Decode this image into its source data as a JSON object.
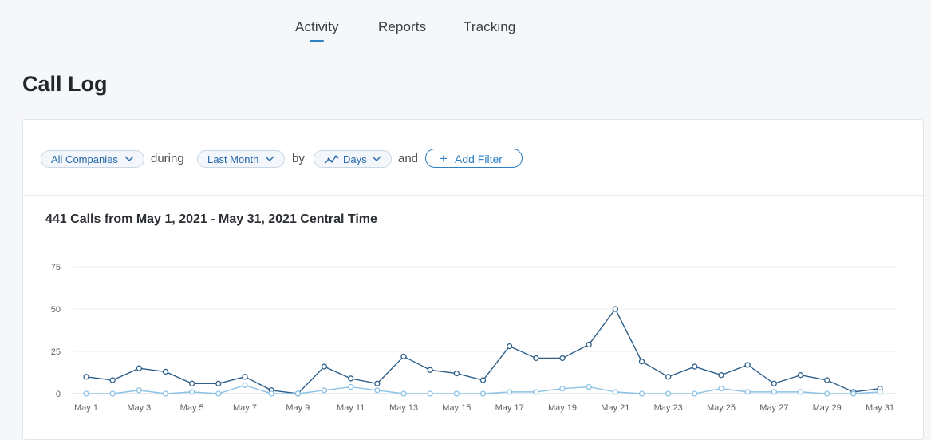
{
  "nav": {
    "tabs": [
      {
        "label": "Activity",
        "active": true
      },
      {
        "label": "Reports",
        "active": false
      },
      {
        "label": "Tracking",
        "active": false
      }
    ]
  },
  "page": {
    "title": "Call Log"
  },
  "filters": {
    "company": "All Companies",
    "during_label": "during",
    "period": "Last Month",
    "by_label": "by",
    "granularity": "Days",
    "and_label": "and",
    "add_filter": "Add Filter"
  },
  "summary": "441 Calls from May 1, 2021 - May 31, 2021 Central Time",
  "colors": {
    "accent": "#2f7fc1",
    "series_dark": "#2e5f8a",
    "series_light": "#8dc3e6"
  },
  "chart_data": {
    "type": "line",
    "x": [
      "May 1",
      "May 2",
      "May 3",
      "May 4",
      "May 5",
      "May 6",
      "May 7",
      "May 8",
      "May 9",
      "May 10",
      "May 11",
      "May 12",
      "May 13",
      "May 14",
      "May 15",
      "May 16",
      "May 17",
      "May 18",
      "May 19",
      "May 20",
      "May 21",
      "May 22",
      "May 23",
      "May 24",
      "May 25",
      "May 26",
      "May 27",
      "May 28",
      "May 29",
      "May 30",
      "May 31"
    ],
    "x_tick_labels": [
      "May 1",
      "May 3",
      "May 5",
      "May 7",
      "May 9",
      "May 11",
      "May 13",
      "May 15",
      "May 17",
      "May 19",
      "May 21",
      "May 23",
      "May 25",
      "May 27",
      "May 29",
      "May 31"
    ],
    "y_ticks": [
      0,
      25,
      50,
      75
    ],
    "ylim": [
      0,
      75
    ],
    "grid": true,
    "series": [
      {
        "values": [
          10,
          8,
          15,
          13,
          6,
          6,
          10,
          2,
          0,
          16,
          9,
          6,
          22,
          14,
          12,
          8,
          28,
          21,
          21,
          29,
          50,
          19,
          10,
          16,
          11,
          17,
          6,
          11,
          8,
          1,
          3
        ]
      },
      {
        "values": [
          0,
          0,
          2,
          0,
          1,
          0,
          5,
          0,
          0,
          2,
          4,
          2,
          0,
          0,
          0,
          0,
          1,
          1,
          3,
          4,
          1,
          0,
          0,
          0,
          3,
          1,
          1,
          1,
          0,
          0,
          1
        ]
      }
    ]
  }
}
